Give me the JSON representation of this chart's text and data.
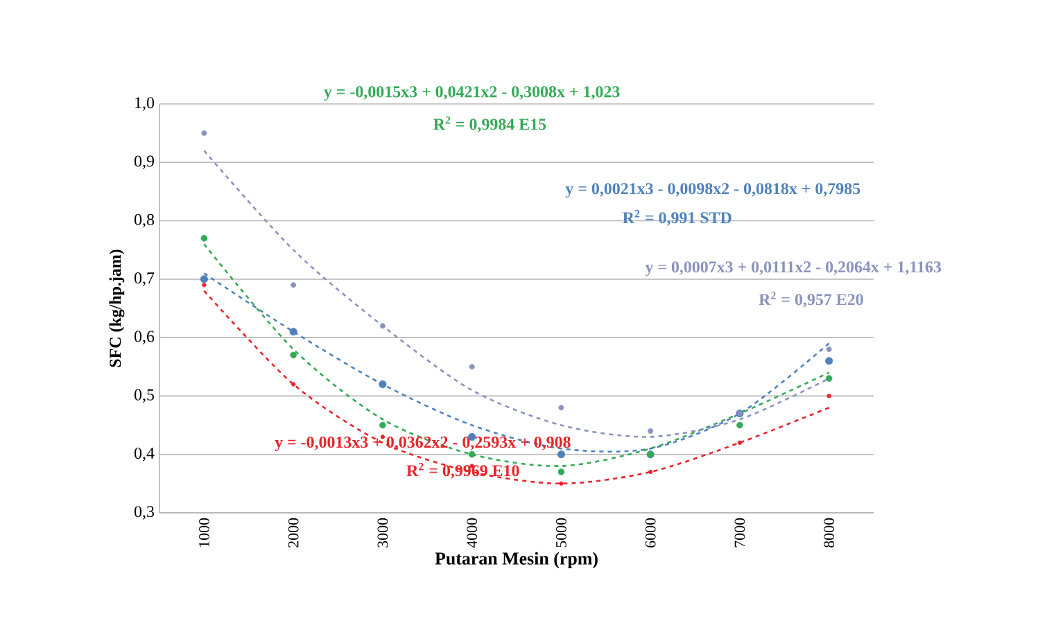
{
  "chart_data": {
    "type": "scatter",
    "xlabel": "Putaran Mesin (rpm)",
    "ylabel": "SFC (kg/hp.jam)",
    "categories": [
      "1000",
      "2000",
      "3000",
      "4000",
      "5000",
      "6000",
      "7000",
      "8000"
    ],
    "ylim": [
      0.3,
      1.0
    ],
    "yticks": [
      {
        "value": 0.3,
        "label": "0,3"
      },
      {
        "value": 0.4,
        "label": "0,4"
      },
      {
        "value": 0.5,
        "label": "0,5"
      },
      {
        "value": 0.6,
        "label": "0,6"
      },
      {
        "value": 0.7,
        "label": "0,7"
      },
      {
        "value": 0.8,
        "label": "0,8"
      },
      {
        "value": 0.9,
        "label": "0,9"
      },
      {
        "value": 1.0,
        "label": "1,0"
      }
    ],
    "grid": "y",
    "series": [
      {
        "marker": "circle",
        "color": "#4f81bd",
        "values": [
          0.7,
          0.61,
          0.52,
          0.43,
          0.4,
          0.4,
          0.47,
          0.56
        ]
      },
      {
        "marker": "circle",
        "color": "#33aa55",
        "values": [
          0.77,
          0.57,
          0.45,
          0.4,
          0.37,
          0.4,
          0.45,
          0.53
        ]
      },
      {
        "marker": "circle",
        "color": "#8a93bd",
        "values": [
          0.95,
          0.69,
          0.62,
          0.55,
          0.48,
          0.44,
          0.47,
          0.58
        ]
      },
      {
        "marker": "circle",
        "color": "#e8232a",
        "values": [
          0.69,
          0.52,
          0.43,
          0.38,
          0.35,
          0.37,
          0.42,
          0.5
        ]
      },
      {
        "type": "line",
        "marker": "none",
        "line_style": "dashed",
        "color": "#4f81bd",
        "values": [
          0.71,
          0.61,
          0.52,
          0.45,
          0.41,
          0.41,
          0.47,
          0.59
        ]
      },
      {
        "type": "line",
        "marker": "none",
        "line_style": "dashed",
        "color": "#33aa55",
        "values": [
          0.76,
          0.58,
          0.46,
          0.4,
          0.38,
          0.41,
          0.47,
          0.54
        ]
      },
      {
        "type": "line",
        "marker": "none",
        "line_style": "dashed",
        "color": "#8a93bd",
        "values": [
          0.92,
          0.75,
          0.62,
          0.51,
          0.45,
          0.43,
          0.46,
          0.53
        ]
      },
      {
        "type": "line",
        "marker": "none",
        "line_style": "dashed",
        "color": "#e8232a",
        "values": [
          0.68,
          0.52,
          0.42,
          0.37,
          0.35,
          0.37,
          0.42,
          0.48
        ]
      }
    ],
    "annotations": [
      "y = -0,0015x3 + 0,0421x2 - 0,3008x + 1,023",
      "R$^{2}$ = 0,9984  E15",
      "y = 0,0021x3 - 0,0098x2 - 0,0818x + 0,7985",
      "R$^{2}$ = 0,991  STD",
      "y = 0,0007x3 + 0,0111x2 - 0,2064x + 1,1163",
      "R$^{2}$ = 0,957  E20",
      "y = -0,0013x3 + 0,0362x2 - 0,2593x + 0,908",
      "R$^{2}$ = 0,9969  E10"
    ]
  }
}
